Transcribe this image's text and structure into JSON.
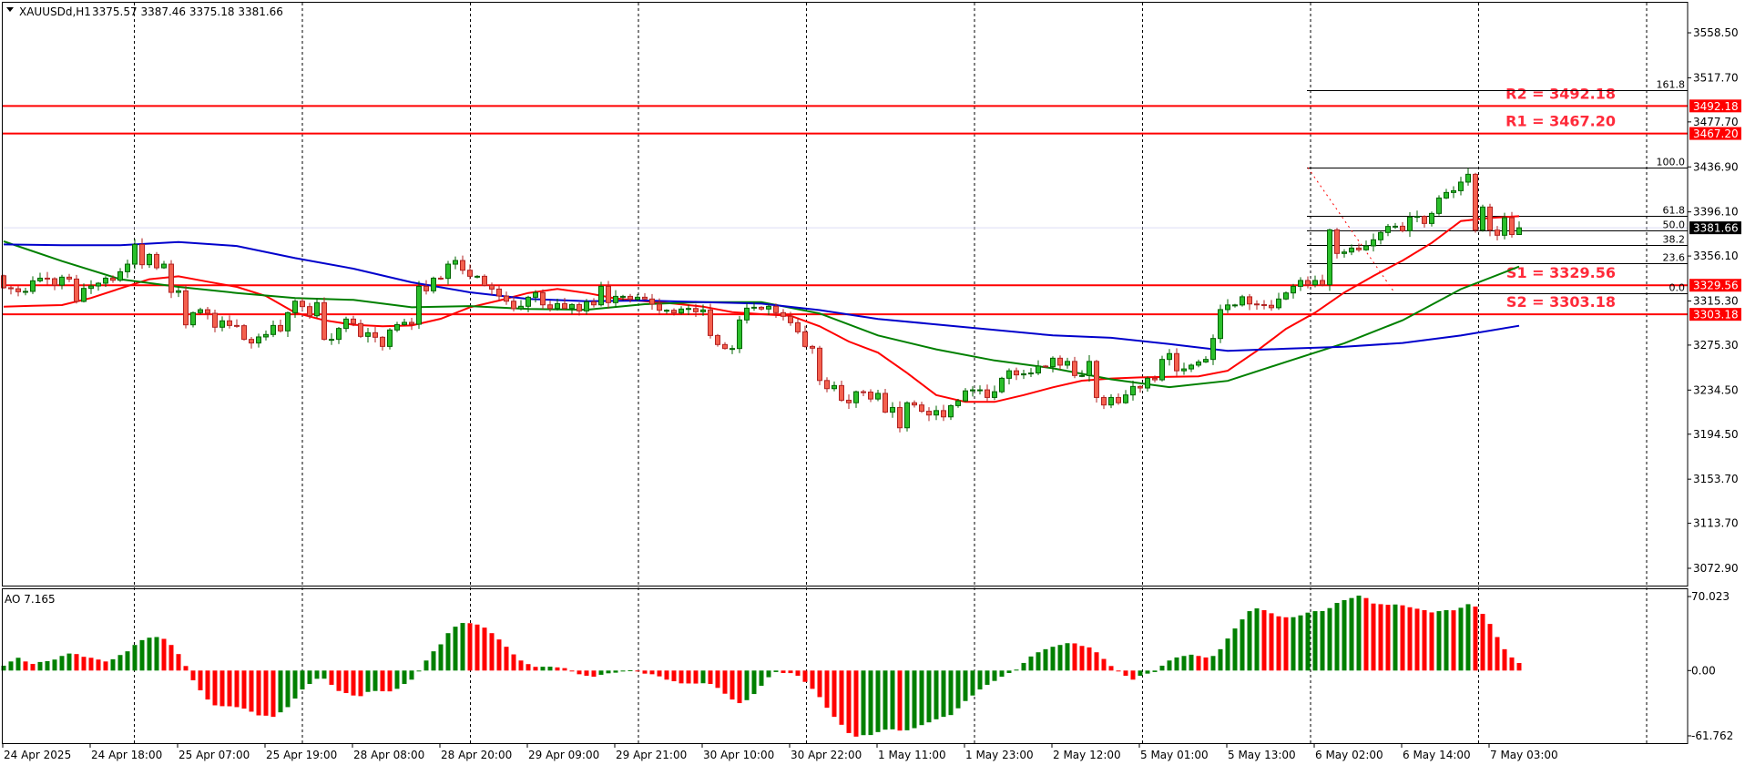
{
  "header": {
    "symbol": "XAUUSDd,H1",
    "ohlc_text": "3375.57 3387.46 3375.18 3381.66",
    "last_bar": {
      "open": 3375.57,
      "high": 3387.46,
      "low": 3375.18,
      "close": 3381.66
    }
  },
  "indicator": {
    "label": "AO 7.165"
  },
  "colors": {
    "bull_fill": "#2bbf2b",
    "bull_line": "#006400",
    "bear_fill": "#f4604e",
    "bear_line": "#b22222",
    "ma_fast": "#ff0000",
    "ma_mid": "#008000",
    "ma_slow": "#0000cc",
    "ao_up": "#008000",
    "ao_down": "#ff0000",
    "level": "#ff0000",
    "current_price_bg": "#000000"
  },
  "chart_data": {
    "type": "candlestick",
    "ylim": [
      3057.2,
      3586.6
    ],
    "ytick_labels": [
      "3558.50",
      "3517.70",
      "3477.70",
      "3436.90",
      "3396.10",
      "3356.10",
      "3315.30",
      "3275.30",
      "3234.50",
      "3194.50",
      "3153.70",
      "3113.70",
      "3072.90"
    ],
    "xtick_labels": [
      "24 Apr 2025",
      "24 Apr 18:00",
      "25 Apr 07:00",
      "25 Apr 19:00",
      "28 Apr 08:00",
      "28 Apr 20:00",
      "29 Apr 09:00",
      "29 Apr 21:00",
      "30 Apr 10:00",
      "30 Apr 22:00",
      "1 May 11:00",
      "1 May 23:00",
      "2 May 12:00",
      "5 May 01:00",
      "5 May 13:00",
      "6 May 02:00",
      "6 May 14:00",
      "7 May 03:00"
    ],
    "grid": "vertical-dashed",
    "first_open": 3338.2,
    "closes": [
      3327.3,
      3326.4,
      3323.7,
      3324,
      3333.6,
      3336,
      3335.5,
      3329.7,
      3336.9,
      3335.2,
      3314.9,
      3326.7,
      3328.9,
      3331.4,
      3336,
      3334.1,
      3341.8,
      3348.7,
      3366.6,
      3348.2,
      3357.5,
      3345.4,
      3348.7,
      3323.1,
      3324.5,
      3293.7,
      3304.7,
      3307.4,
      3304.1,
      3291.5,
      3297.3,
      3293.1,
      3292.9,
      3280.5,
      3277.2,
      3282.7,
      3284.9,
      3293.1,
      3288.2,
      3304.7,
      3315.1,
      3310.2,
      3301.9,
      3313.8,
      3280.5,
      3280.5,
      3290.4,
      3298.9,
      3294.8,
      3283.2,
      3286.5,
      3282.4,
      3274.1,
      3289,
      3293.9,
      3295.9,
      3294.2,
      3328.6,
      3324.5,
      3336,
      3335.8,
      3348.7,
      3352,
      3343.2,
      3337.7,
      3337.7,
      3329.5,
      3326.1,
      3319.8,
      3315.1,
      3308.3,
      3310.5,
      3318.7,
      3322.9,
      3311.8,
      3308.5,
      3312.9,
      3308.5,
      3312.1,
      3306.3,
      3314.6,
      3311.8,
      3328.6,
      3313.8,
      3319.5,
      3319.5,
      3316.8,
      3318.7,
      3317.1,
      3312.4,
      3306.9,
      3306.9,
      3304.4,
      3308,
      3308.5,
      3305.5,
      3307.2,
      3284,
      3275.8,
      3272.2,
      3272.2,
      3298.1,
      3308.8,
      3309.6,
      3308,
      3310.5,
      3304.7,
      3301.4,
      3295.6,
      3287.3,
      3274.1,
      3272.5,
      3243.2,
      3235.8,
      3238.6,
      3225.3,
      3223,
      3233,
      3232.7,
      3226.4,
      3231.5,
      3214.5,
      3218.7,
      3200.3,
      3223,
      3221,
      3215.3,
      3211.9,
      3215.9,
      3210.2,
      3220.4,
      3224.7,
      3233.8,
      3234.7,
      3234.7,
      3227.8,
      3233,
      3245.2,
      3252,
      3248.3,
      3249.2,
      3250,
      3256.3,
      3255.7,
      3263.4,
      3257.1,
      3260.5,
      3247.7,
      3247.7,
      3260.5,
      3227.8,
      3221,
      3227.8,
      3223,
      3230.1,
      3237.8,
      3236.4,
      3245.2,
      3243.8,
      3262.3,
      3267.6,
      3252,
      3253.7,
      3257.1,
      3260,
      3262.3,
      3281.3,
      3307.5,
      3311.7,
      3311.7,
      3319.1,
      3312.6,
      3312,
      3311.4,
      3309.2,
      3317.1,
      3322.6,
      3328.6,
      3333.9,
      3330,
      3333.9,
      3330,
      3379.8,
      3358.4,
      3359.7,
      3363.3,
      3361.7,
      3365.3,
      3370.8,
      3377.4,
      3382.9,
      3383.1,
      3379,
      3391.4,
      3392,
      3385.6,
      3394.7,
      3408.7,
      3413.7,
      3415.3,
      3423.1,
      3430.2,
      3379.6,
      3400.5,
      3379.6,
      3374.9,
      3390.8,
      3375.57,
      3381.66
    ],
    "moving_averages": [
      {
        "color_key": "ma_fast",
        "values": [
          3310.2,
          3311,
          3311.6,
          3318,
          3326.7,
          3335,
          3337.7,
          3332.8,
          3328.1,
          3319.8,
          3304.7,
          3297.8,
          3293.7,
          3292.3,
          3293.1,
          3299.2,
          3309.6,
          3315.7,
          3322.6,
          3326.2,
          3322.6,
          3317.6,
          3315.1,
          3312.9,
          3310.2,
          3305.2,
          3303.3,
          3301.9,
          3292.3,
          3278.5,
          3268.5,
          3250,
          3230,
          3223.8,
          3223.8,
          3230,
          3237,
          3243,
          3245,
          3246,
          3246.6,
          3247,
          3252,
          3270,
          3290,
          3304.7,
          3323,
          3338,
          3352,
          3368,
          3387.8,
          3390.6,
          3392.2
        ]
      },
      {
        "color_key": "ma_mid",
        "values": [
          3369.4,
          3351.5,
          3335,
          3328.1,
          3322.6,
          3317.9,
          3316.3,
          3309.6,
          3310.7,
          3308,
          3307.4,
          3312.4,
          3314.3,
          3314.3,
          3304,
          3284.1,
          3271.4,
          3261.4,
          3254.3,
          3244.3,
          3237.2,
          3242.9,
          3260,
          3277,
          3297.8,
          3326,
          3346.5
        ]
      },
      {
        "color_key": "ma_slow",
        "values": [
          3366.6,
          3365.8,
          3365.8,
          3368.8,
          3365.2,
          3354.2,
          3344.6,
          3332.2,
          3323.1,
          3317.1,
          3315.1,
          3315.7,
          3314.3,
          3312.9,
          3307,
          3298.9,
          3294.1,
          3289,
          3284.1,
          3281.9,
          3276.2,
          3270,
          3272,
          3273.8,
          3277.2,
          3284,
          3292.8
        ]
      }
    ],
    "levels": [
      {
        "name": "R2",
        "label": "R2 = 3492.18",
        "price": 3492.18,
        "tag": "3492.18"
      },
      {
        "name": "R1",
        "label": "R1 = 3467.20",
        "price": 3467.2,
        "tag": "3467.20"
      },
      {
        "name": "S1",
        "label": "S1 = 3329.56",
        "price": 3329.56,
        "tag": "3329.56"
      },
      {
        "name": "S2",
        "label": "S2 = 3303.18",
        "price": 3303.18,
        "tag": "3303.18"
      }
    ],
    "current_price": {
      "price": 3381.66,
      "tag": "3381.66"
    },
    "fibonacci": {
      "low": 3322.6,
      "high": 3436.3,
      "levels": [
        {
          "ratio": 1.618,
          "label": "161.8"
        },
        {
          "ratio": 1.0,
          "label": "100.0"
        },
        {
          "ratio": 0.618,
          "label": "61.8"
        },
        {
          "ratio": 0.5,
          "label": "50.0"
        },
        {
          "ratio": 0.382,
          "label": "38.2"
        },
        {
          "ratio": 0.236,
          "label": "23.6"
        },
        {
          "ratio": 0.0,
          "label": "0.0"
        }
      ]
    },
    "ao": {
      "ylim": [
        -68.67,
        76.93
      ],
      "ytick_labels": [
        {
          "v": 70.023,
          "t": "70.023"
        },
        {
          "v": 0,
          "t": "0.00"
        },
        {
          "v": -61.762,
          "t": "-61.762"
        }
      ],
      "values": [
        4.6,
        8.6,
        12.1,
        8.6,
        6.3,
        8.1,
        8.9,
        10.4,
        13.8,
        16.1,
        15.6,
        13,
        12.1,
        10.4,
        8.6,
        10.7,
        14.7,
        18.2,
        24.2,
        28.8,
        31.1,
        31.7,
        30,
        24.2,
        15.6,
        4.3,
        -9.2,
        -18.7,
        -27.4,
        -32.9,
        -33.7,
        -33.8,
        -34.6,
        -36,
        -38.9,
        -42.4,
        -42.7,
        -43.8,
        -39.5,
        -34.6,
        -26.5,
        -17.9,
        -12.7,
        -7.8,
        -7.7,
        -13.5,
        -19.3,
        -21.3,
        -23.6,
        -24.2,
        -20.2,
        -19.3,
        -19.6,
        -19.7,
        -17.3,
        -12.7,
        -8.6,
        -0.6,
        9.5,
        18.2,
        24.8,
        35.4,
        41.5,
        45,
        44.8,
        43.5,
        40.6,
        35.4,
        29.4,
        22.5,
        15.3,
        9.5,
        6.1,
        3.5,
        3.6,
        3.7,
        3.0,
        2.3,
        -0.6,
        -3.5,
        -4.9,
        -5.8,
        -4,
        -2.6,
        -2,
        -0.9,
        0.3,
        -0.6,
        -2.9,
        -3.5,
        -5.5,
        -8.6,
        -10.1,
        -12.1,
        -12.2,
        -12.3,
        -12,
        -12.7,
        -16.4,
        -21.9,
        -27.4,
        -30.8,
        -28,
        -22.2,
        -14.4,
        -6.3,
        -1.4,
        -2.3,
        -2.4,
        -4.9,
        -10.7,
        -17.3,
        -25.1,
        -35.2,
        -43.8,
        -51.3,
        -59.1,
        -62.5,
        -61.1,
        -61,
        -58.2,
        -55.9,
        -55.6,
        -56.8,
        -56.5,
        -54.5,
        -51.6,
        -49,
        -46.1,
        -43.8,
        -42.1,
        -35.7,
        -28.8,
        -23.6,
        -17.9,
        -13.5,
        -9.8,
        -5.8,
        -2.3,
        0.9,
        7.2,
        13.3,
        17.3,
        20.2,
        22.5,
        24.2,
        25.9,
        25.7,
        23.3,
        21.9,
        17.3,
        11,
        4.3,
        -0.6,
        -4.9,
        -8.6,
        -4.9,
        -2.9,
        -1.4,
        4.6,
        9.5,
        12.4,
        13.8,
        15,
        13.8,
        12.4,
        13.8,
        20.2,
        30.3,
        39.8,
        48.4,
        56.2,
        58.8,
        57.1,
        54.2,
        51.3,
        50.4,
        50.5,
        52.2,
        54.8,
        56.2,
        56.3,
        59.1,
        64,
        66.6,
        68.6,
        70.9,
        68.6,
        63.4,
        62.8,
        62.2,
        62.5,
        61.7,
        59.9,
        58.5,
        57.1,
        55,
        56.2,
        57.1,
        57,
        59.4,
        62.8,
        60.5,
        53.6,
        44.1,
        31.7,
        20.2,
        12.4,
        7.165
      ]
    }
  }
}
